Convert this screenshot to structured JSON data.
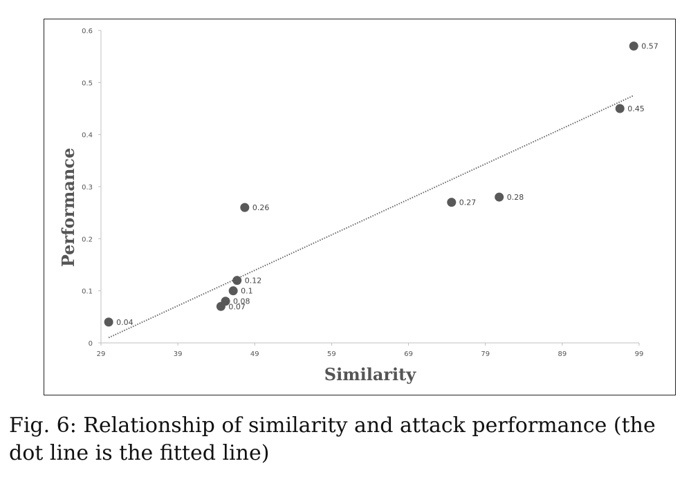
{
  "caption": "Fig. 6: Relationship of similarity and attack performance (the dot line is the fitted line)",
  "chart_data": {
    "type": "scatter",
    "xlabel": "Similarity",
    "ylabel": "Performance",
    "xlim": [
      29,
      99
    ],
    "ylim": [
      0,
      0.6
    ],
    "xticks": [
      29,
      39,
      49,
      59,
      69,
      79,
      89,
      99
    ],
    "yticks": [
      0,
      0.1,
      0.2,
      0.3,
      0.4,
      0.5,
      0.6
    ],
    "grid": false,
    "points": [
      {
        "x": 30,
        "y": 0.04,
        "label": "0.04"
      },
      {
        "x": 44.6,
        "y": 0.07,
        "label": "0.07"
      },
      {
        "x": 45.2,
        "y": 0.08,
        "label": "0.08"
      },
      {
        "x": 46.2,
        "y": 0.1,
        "label": "0.1"
      },
      {
        "x": 46.7,
        "y": 0.12,
        "label": "0.12"
      },
      {
        "x": 47.7,
        "y": 0.26,
        "label": "0.26"
      },
      {
        "x": 74.6,
        "y": 0.27,
        "label": "0.27"
      },
      {
        "x": 80.8,
        "y": 0.28,
        "label": "0.28"
      },
      {
        "x": 96.5,
        "y": 0.45,
        "label": "0.45"
      },
      {
        "x": 98.3,
        "y": 0.57,
        "label": "0.57"
      }
    ],
    "trendline": {
      "style": "dotted",
      "x": [
        30,
        98.3
      ],
      "y": [
        0.01,
        0.475
      ]
    },
    "marker_color": "#595959",
    "trend_color": "#666666"
  }
}
